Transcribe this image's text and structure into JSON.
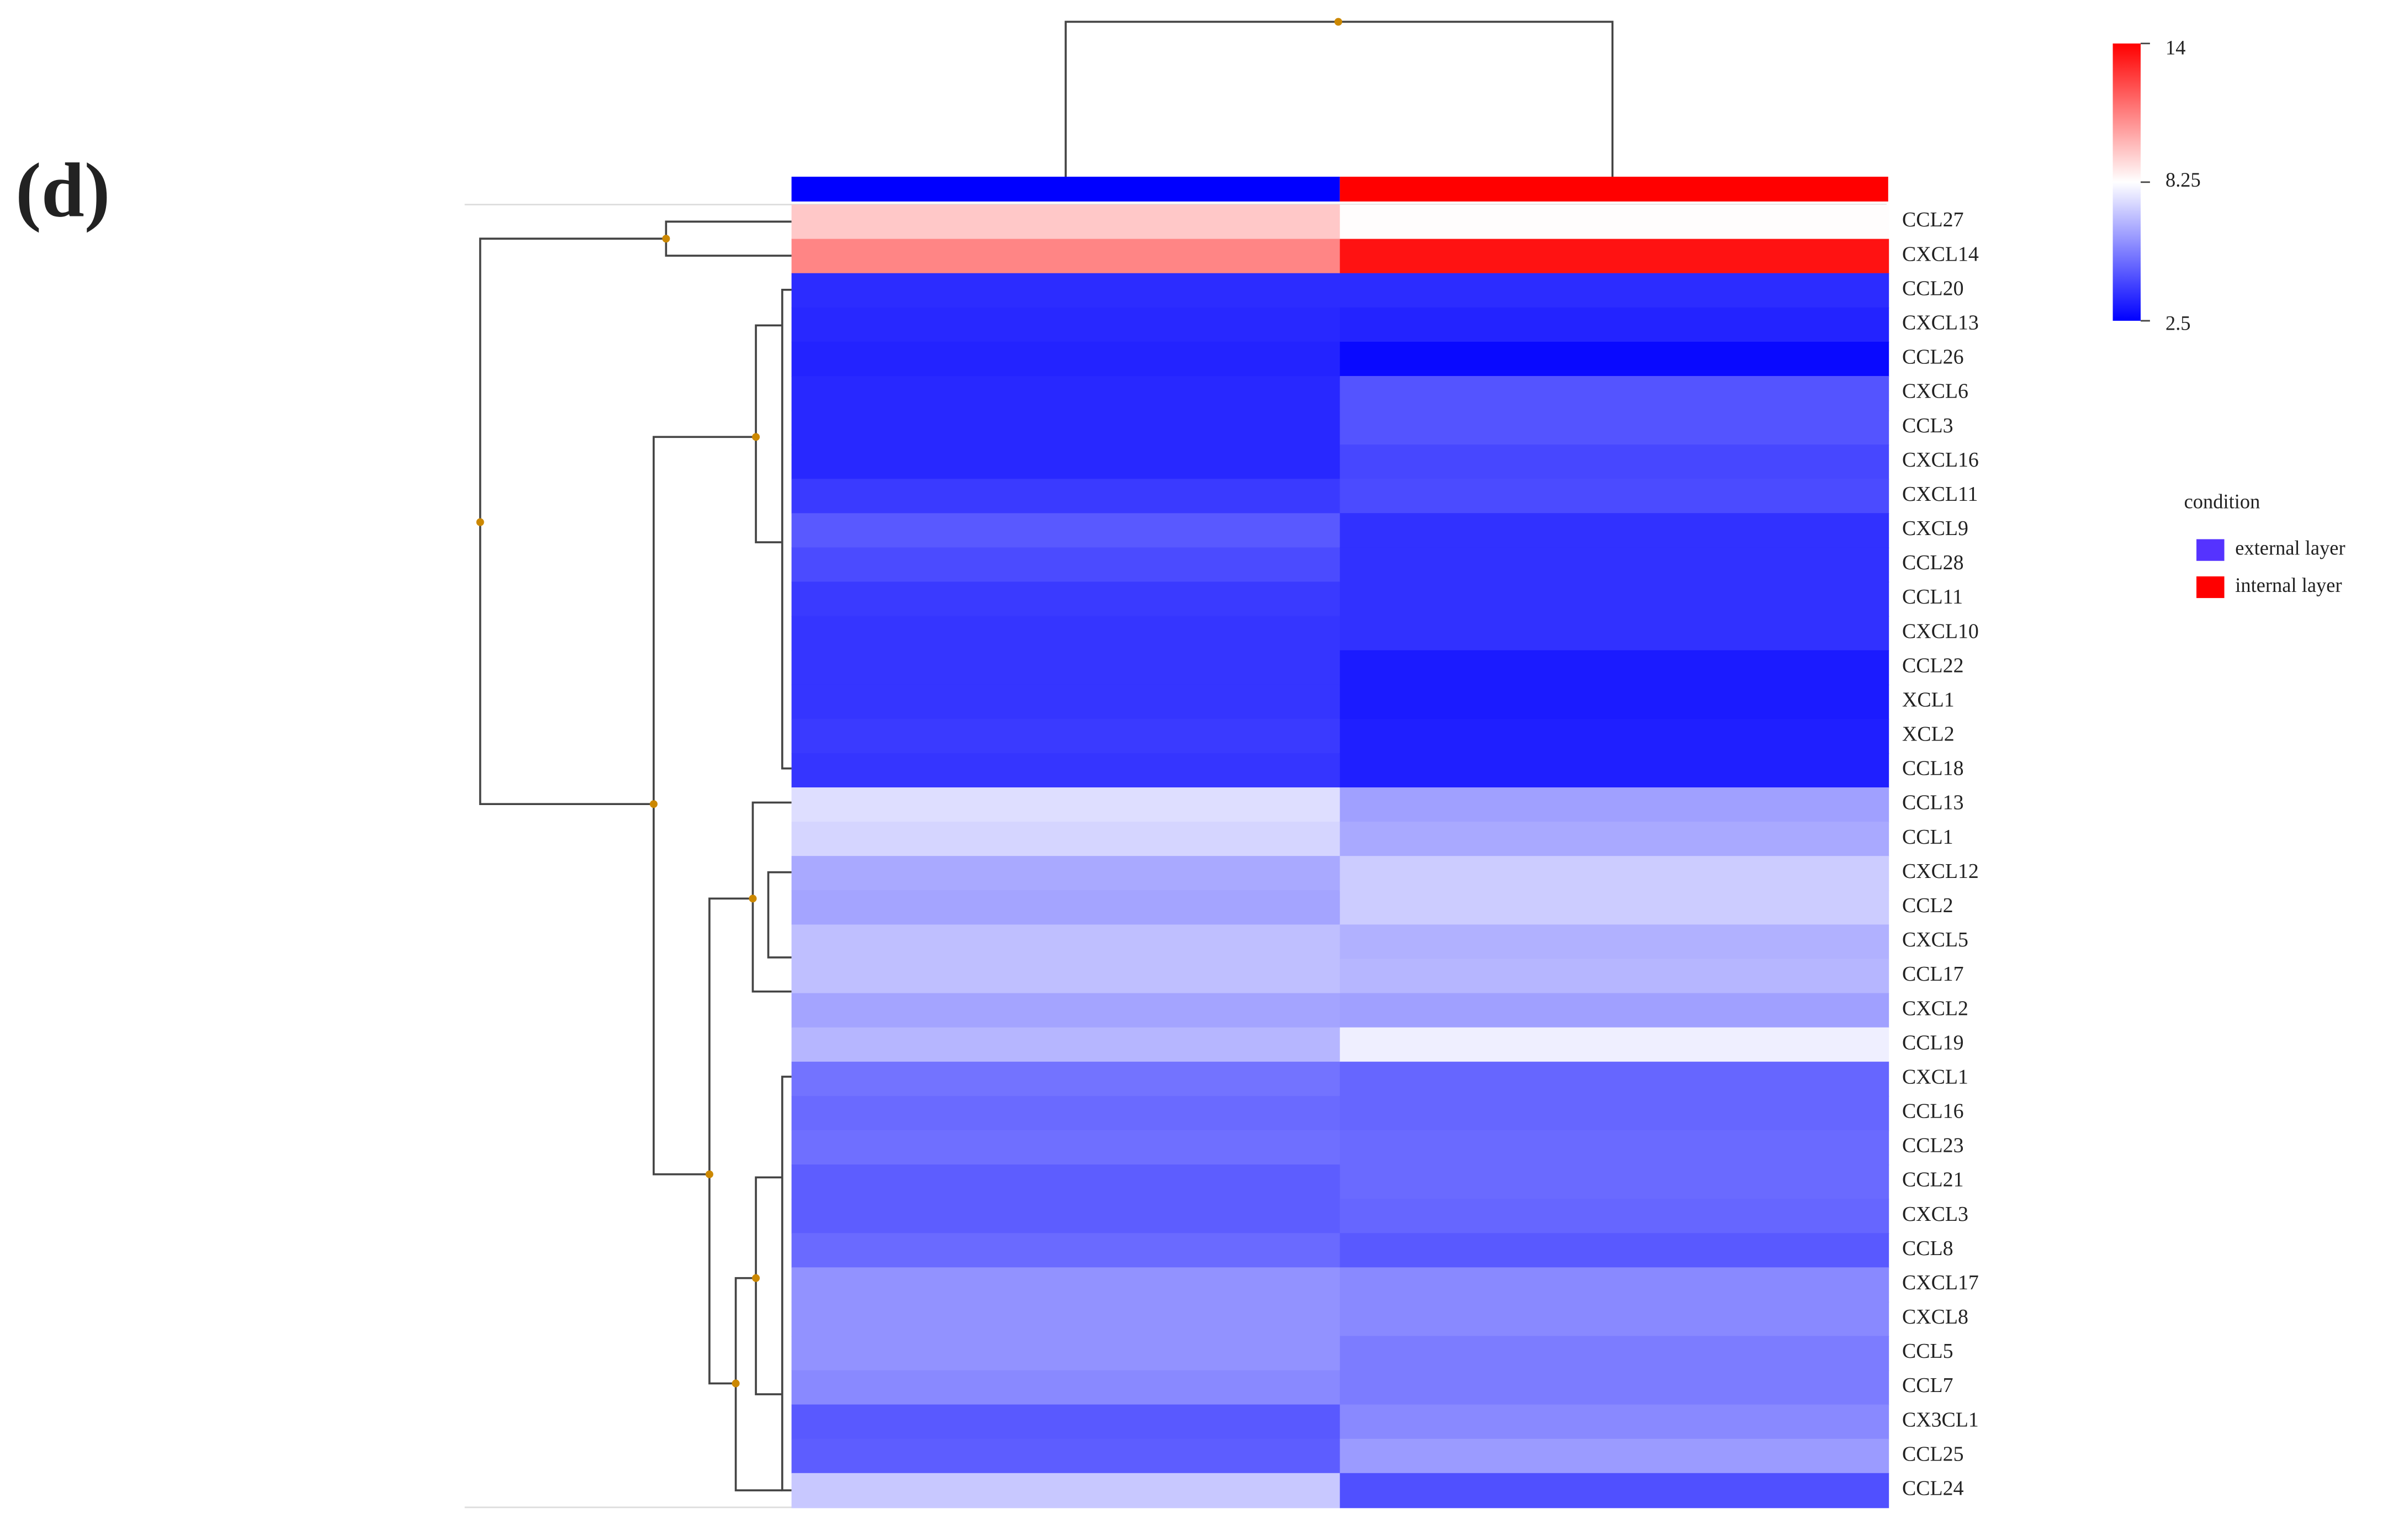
{
  "chart_data": {
    "type": "heatmap",
    "panel_label": "(d)",
    "categories": [
      "CCL27",
      "CXCL14",
      "CCL20",
      "CXCL13",
      "CCL26",
      "CXCL6",
      "CCL3",
      "CXCL16",
      "CXCL11",
      "CXCL9",
      "CCL28",
      "CCL11",
      "CXCL10",
      "CCL22",
      "XCL1",
      "XCL2",
      "CCL18",
      "CCL13",
      "CCL1",
      "CXCL12",
      "CCL2",
      "CXCL5",
      "CCL17",
      "CXCL2",
      "CCL19",
      "CXCL1",
      "CCL16",
      "CCL23",
      "CCL21",
      "CXCL3",
      "CCL8",
      "CXCL17",
      "CXCL8",
      "CCL5",
      "CCL7",
      "CX3CL1",
      "CCL25",
      "CCL24"
    ],
    "legend_title": "condition",
    "series": [
      {
        "name": "external layer",
        "color": "#0000ff",
        "legend_color": "#5533ff",
        "values": [
          9.5,
          11,
          3.5,
          3.4,
          3.3,
          3.4,
          3.4,
          3.4,
          3.8,
          4.5,
          4.2,
          3.8,
          3.7,
          3.7,
          3.7,
          3.8,
          3.7,
          7.5,
          7.3,
          6.3,
          6.2,
          6.8,
          6.8,
          6.2,
          6.6,
          5.1,
          4.9,
          5.0,
          4.6,
          4.6,
          4.9,
          5.8,
          5.8,
          5.8,
          5.6,
          4.5,
          4.6,
          7.0
        ]
      },
      {
        "name": "internal layer",
        "color": "#ff0000",
        "legend_color": "#ff0000",
        "values": [
          8.3,
          13.6,
          3.5,
          3.3,
          2.7,
          4.4,
          4.4,
          4.1,
          4.2,
          3.6,
          3.6,
          3.6,
          3.6,
          3.1,
          3.1,
          3.2,
          3.2,
          6.1,
          6.3,
          7.1,
          7.1,
          6.5,
          6.6,
          6.1,
          7.9,
          4.8,
          4.8,
          4.9,
          4.9,
          4.8,
          4.5,
          5.6,
          5.6,
          5.3,
          5.3,
          5.6,
          6.0,
          4.3
        ]
      }
    ],
    "colorbar": {
      "lim": [
        2.5,
        14
      ],
      "ticks": [
        2.5,
        8.25,
        14
      ],
      "colors": [
        "#0000ff",
        "#ffffff",
        "#ff0000"
      ]
    }
  }
}
